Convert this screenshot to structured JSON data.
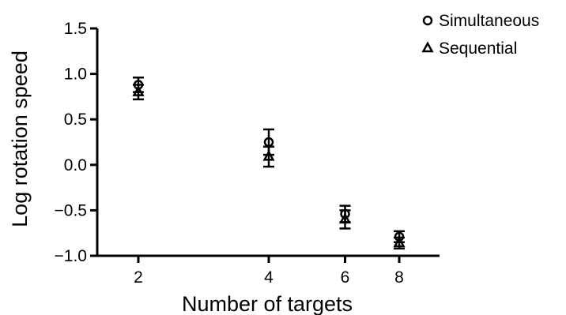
{
  "chart_data": {
    "type": "scatter",
    "xlabel": "Number of targets",
    "ylabel": "Log rotation speed",
    "x_ticks": [
      2,
      4,
      6,
      8
    ],
    "x_tick_labels": [
      "2",
      "4",
      "6",
      "8"
    ],
    "y_ticks": [
      -1.0,
      -0.5,
      0.0,
      0.5,
      1.0,
      1.5
    ],
    "y_tick_labels": [
      "−1.0",
      "−0.5",
      "0.0",
      "0.5",
      "1.0",
      "1.5"
    ],
    "ylim": [
      -1.0,
      1.5
    ],
    "x_scale": "log",
    "grid": false,
    "legend_position": "top-right",
    "series": [
      {
        "name": "Simultaneous",
        "marker": "circle",
        "color": "#000000",
        "points": [
          {
            "x": 2,
            "y": 0.88,
            "err": 0.08
          },
          {
            "x": 4,
            "y": 0.25,
            "err": 0.14
          },
          {
            "x": 6,
            "y": -0.54,
            "err": 0.09
          },
          {
            "x": 8,
            "y": -0.79,
            "err": 0.06
          }
        ]
      },
      {
        "name": "Sequential",
        "marker": "triangle",
        "color": "#000000",
        "points": [
          {
            "x": 2,
            "y": 0.8,
            "err": 0.08
          },
          {
            "x": 4,
            "y": 0.09,
            "err": 0.11
          },
          {
            "x": 6,
            "y": -0.6,
            "err": 0.1
          },
          {
            "x": 8,
            "y": -0.86,
            "err": 0.06
          }
        ]
      }
    ]
  }
}
